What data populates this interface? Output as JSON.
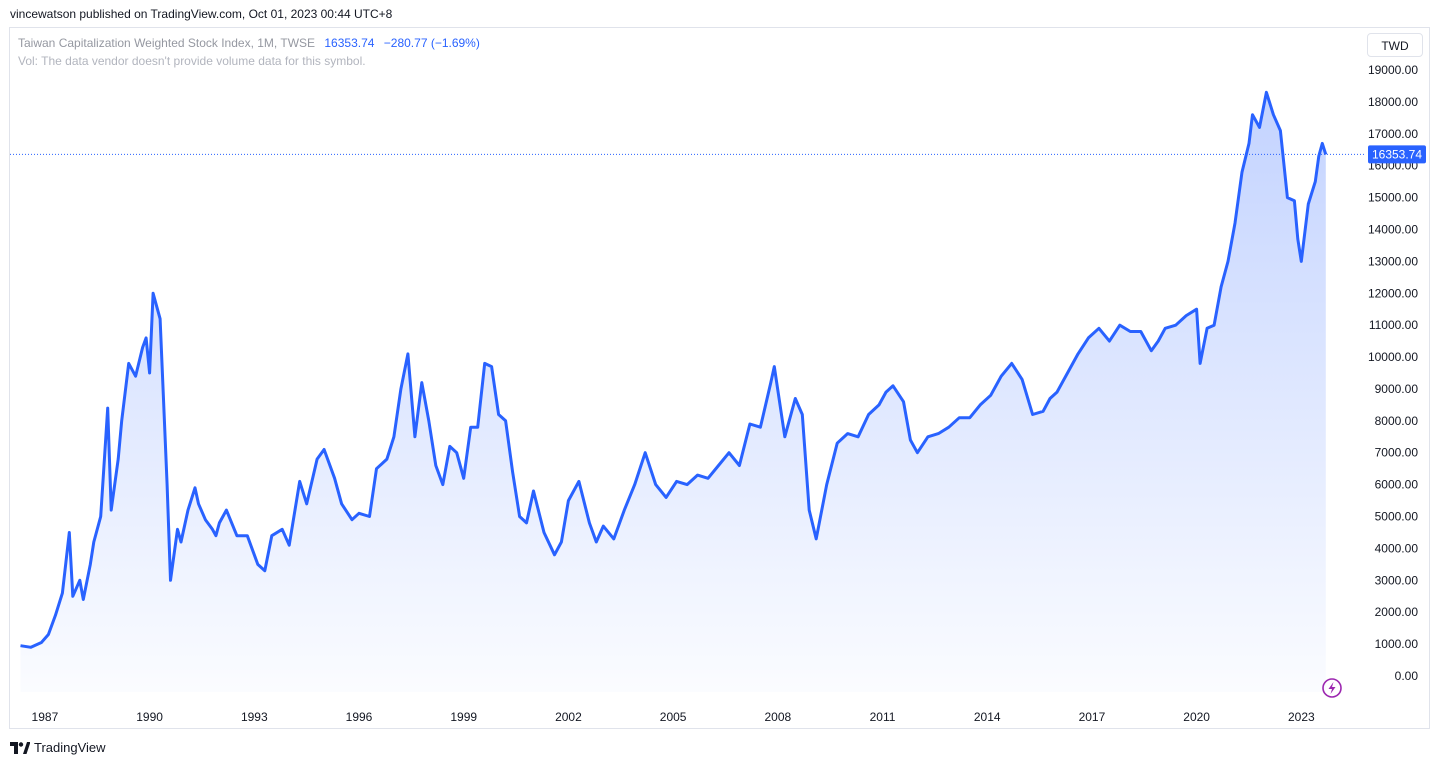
{
  "header": {
    "published_line": "vincewatson published on TradingView.com, Oct 01, 2023 00:44 UTC+8"
  },
  "legend": {
    "symbol": "Taiwan Capitalization Weighted Stock Index, 1M, TWSE",
    "price": "16353.74",
    "change": "−280.77 (−1.69%)",
    "volume_note": "Vol: The data vendor doesn't provide volume data for this symbol."
  },
  "currency_button": "TWD",
  "footer": {
    "brand": "TradingView"
  },
  "icons": {
    "logo": "tradingview-logo-icon",
    "lightning": "lightning-icon"
  },
  "colors": {
    "line": "#2962ff",
    "area_top": "#2962ff",
    "price_label_bg": "#2962ff",
    "lightning": "#9c27b0"
  },
  "chart_data": {
    "type": "area",
    "title": "Taiwan Capitalization Weighted Stock Index",
    "interval": "1M",
    "exchange": "TWSE",
    "currency": "TWD",
    "ylim": [
      0,
      19000
    ],
    "y_ticks": [
      "19000.00",
      "18000.00",
      "17000.00",
      "16000.00",
      "15000.00",
      "14000.00",
      "13000.00",
      "12000.00",
      "11000.00",
      "10000.00",
      "9000.00",
      "8000.00",
      "7000.00",
      "6000.00",
      "5000.00",
      "4000.00",
      "3000.00",
      "2000.00",
      "1000.00",
      "0.00"
    ],
    "x_ticks": [
      "1987",
      "1990",
      "1993",
      "1996",
      "1999",
      "2002",
      "2005",
      "2008",
      "2011",
      "2014",
      "2017",
      "2020",
      "2023"
    ],
    "last_price_label": "16353.74",
    "grid": false,
    "series": [
      {
        "values_x": [
          1986.3,
          1986.6,
          1986.9,
          1987.1,
          1987.3,
          1987.5,
          1987.7,
          1987.8,
          1988.0,
          1988.1,
          1988.3,
          1988.4,
          1988.6,
          1988.8,
          1988.9,
          1989.1,
          1989.2,
          1989.4,
          1989.6,
          1989.8,
          1989.9,
          1990.0,
          1990.1,
          1990.3,
          1990.5,
          1990.6,
          1990.8,
          1990.9,
          1991.1,
          1991.3,
          1991.4,
          1991.6,
          1991.8,
          1991.9,
          1992.0,
          1992.2,
          1992.5,
          1992.8,
          1993.0,
          1993.1,
          1993.3,
          1993.5,
          1993.8,
          1994.0,
          1994.3,
          1994.5,
          1994.8,
          1995.0,
          1995.3,
          1995.5,
          1995.8,
          1996.0,
          1996.3,
          1996.5,
          1996.8,
          1997.0,
          1997.2,
          1997.4,
          1997.6,
          1997.8,
          1998.0,
          1998.2,
          1998.4,
          1998.6,
          1998.8,
          1999.0,
          1999.2,
          1999.4,
          1999.6,
          1999.8,
          2000.0,
          2000.2,
          2000.4,
          2000.6,
          2000.8,
          2001.0,
          2001.3,
          2001.6,
          2001.8,
          2002.0,
          2002.3,
          2002.6,
          2002.8,
          2003.0,
          2003.3,
          2003.6,
          2003.9,
          2004.2,
          2004.5,
          2004.8,
          2005.1,
          2005.4,
          2005.7,
          2006.0,
          2006.3,
          2006.6,
          2006.9,
          2007.2,
          2007.5,
          2007.8,
          2007.9,
          2008.2,
          2008.5,
          2008.7,
          2008.9,
          2009.1,
          2009.4,
          2009.7,
          2010.0,
          2010.3,
          2010.6,
          2010.9,
          2011.1,
          2011.3,
          2011.6,
          2011.8,
          2012.0,
          2012.3,
          2012.6,
          2012.9,
          2013.2,
          2013.5,
          2013.8,
          2014.1,
          2014.4,
          2014.7,
          2015.0,
          2015.3,
          2015.6,
          2015.8,
          2016.0,
          2016.3,
          2016.6,
          2016.9,
          2017.2,
          2017.5,
          2017.8,
          2018.1,
          2018.4,
          2018.7,
          2018.9,
          2019.1,
          2019.4,
          2019.7,
          2020.0,
          2020.1,
          2020.3,
          2020.5,
          2020.7,
          2020.9,
          2021.1,
          2021.3,
          2021.5,
          2021.6,
          2021.8,
          2022.0,
          2022.2,
          2022.4,
          2022.6,
          2022.8,
          2022.9,
          2023.0,
          2023.2,
          2023.4,
          2023.5,
          2023.6,
          2023.7
        ],
        "values_y": [
          950,
          900,
          1050,
          1300,
          1900,
          2600,
          4500,
          2500,
          3000,
          2400,
          3500,
          4200,
          5000,
          8400,
          5200,
          6800,
          8000,
          9800,
          9400,
          10300,
          10600,
          9500,
          12000,
          11200,
          6000,
          3000,
          4600,
          4200,
          5200,
          5900,
          5400,
          4900,
          4600,
          4400,
          4800,
          5200,
          4400,
          4400,
          3800,
          3500,
          3300,
          4400,
          4600,
          4100,
          6100,
          5400,
          6800,
          7100,
          6200,
          5400,
          4900,
          5100,
          5000,
          6500,
          6800,
          7500,
          9000,
          10100,
          7500,
          9200,
          8000,
          6600,
          6000,
          7200,
          7000,
          6200,
          7800,
          7800,
          9800,
          9700,
          8200,
          8000,
          6400,
          5000,
          4800,
          5800,
          4500,
          3800,
          4200,
          5500,
          6100,
          4800,
          4200,
          4700,
          4300,
          5200,
          6000,
          7000,
          6000,
          5600,
          6100,
          6000,
          6300,
          6200,
          6600,
          7000,
          6600,
          7900,
          7800,
          9200,
          9700,
          7500,
          8700,
          8200,
          5200,
          4300,
          6000,
          7300,
          7600,
          7500,
          8200,
          8500,
          8900,
          9100,
          8600,
          7400,
          7000,
          7500,
          7600,
          7800,
          8100,
          8100,
          8500,
          8800,
          9400,
          9800,
          9300,
          8200,
          8300,
          8700,
          8900,
          9500,
          10100,
          10600,
          10900,
          10500,
          11000,
          10800,
          10800,
          10200,
          10500,
          10900,
          11000,
          11300,
          11500,
          9800,
          10900,
          11000,
          12200,
          13000,
          14200,
          15800,
          16700,
          17600,
          17200,
          18300,
          17600,
          17100,
          15000,
          14900,
          13700,
          13000,
          14800,
          15500,
          16300,
          16700,
          16350
        ]
      }
    ]
  }
}
